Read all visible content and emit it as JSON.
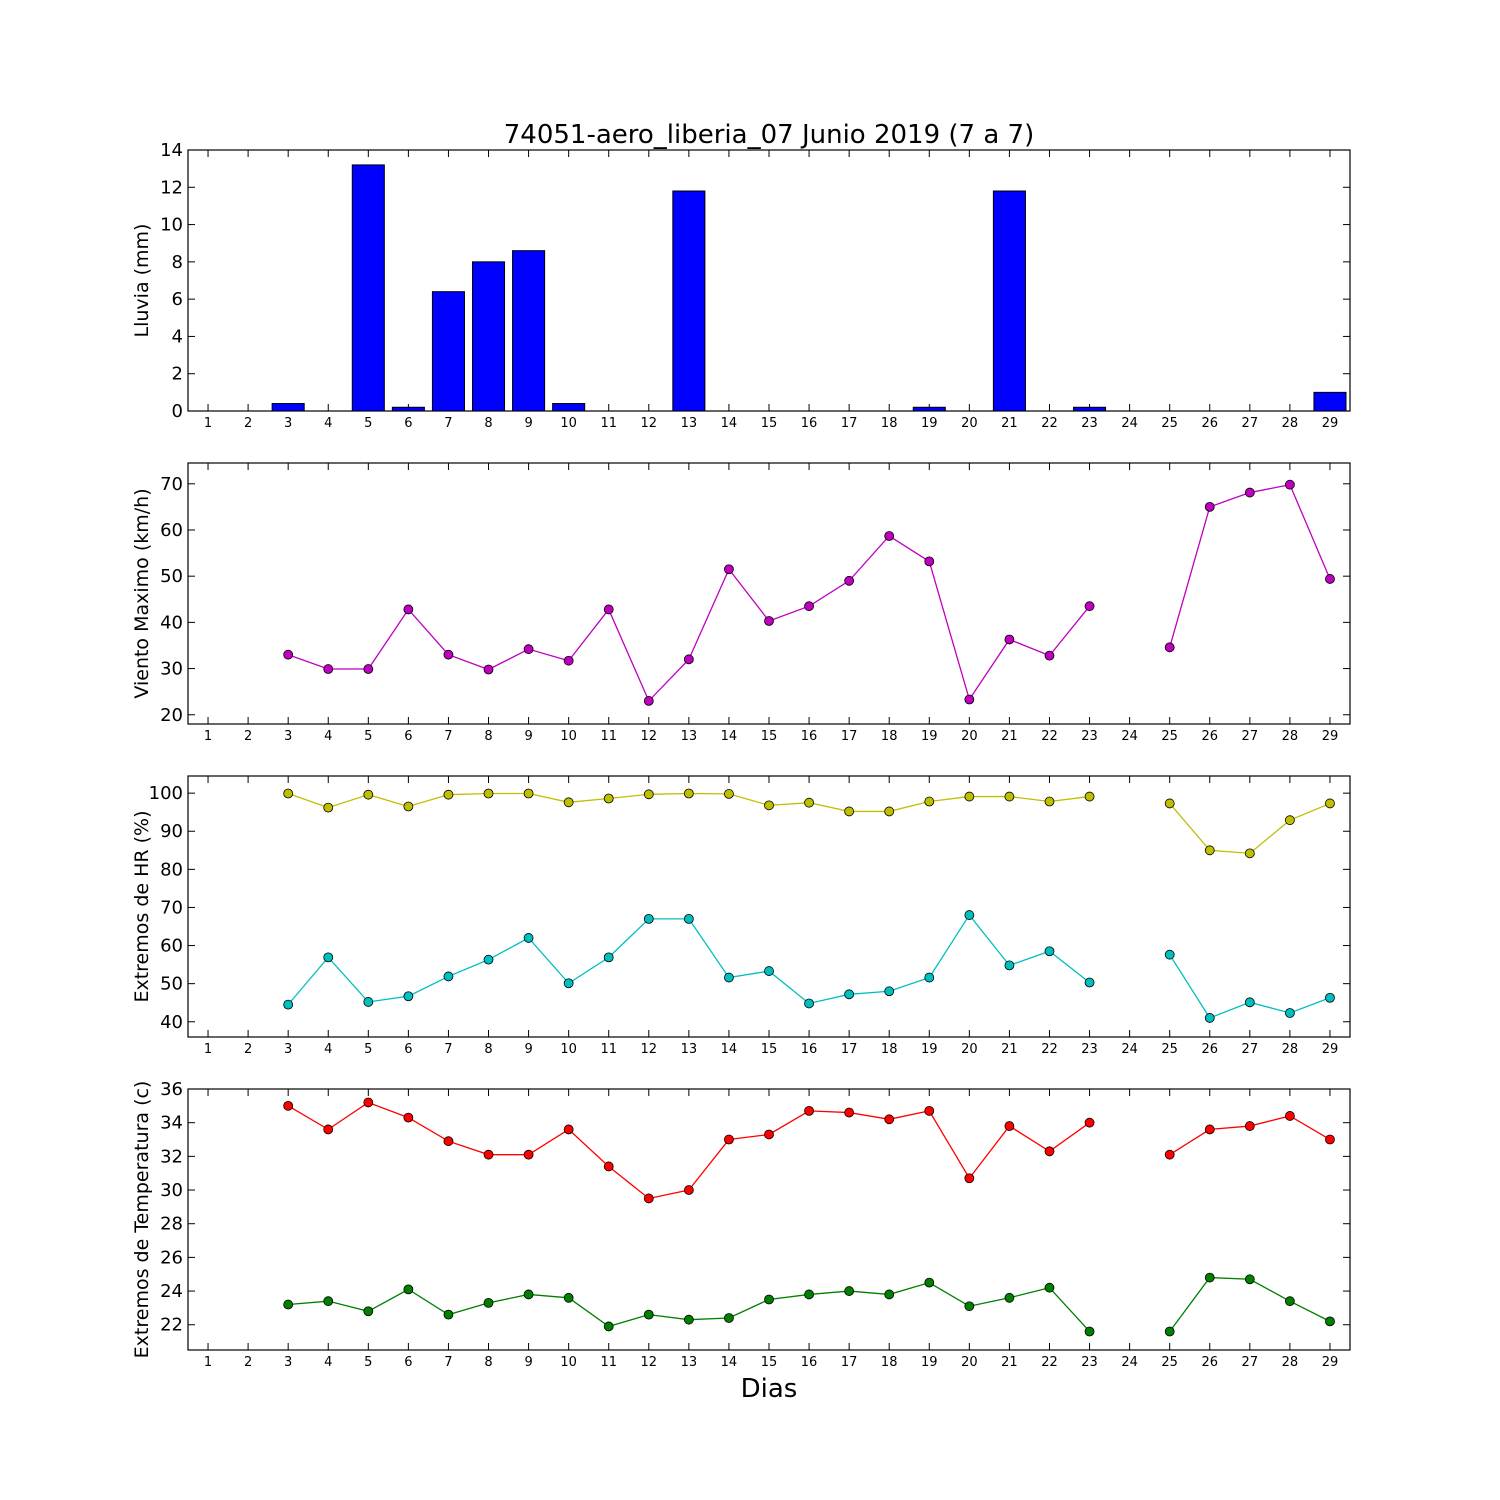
{
  "chart_data": {
    "title": "74051-aero_liberia_07 Junio 2019  (7 a 7)",
    "xlabel": "Dias",
    "days": [
      1,
      2,
      3,
      4,
      5,
      6,
      7,
      8,
      9,
      10,
      11,
      12,
      13,
      14,
      15,
      16,
      17,
      18,
      19,
      20,
      21,
      22,
      23,
      24,
      25,
      26,
      27,
      28,
      29
    ],
    "panels": [
      {
        "type": "bar",
        "ylabel": "Lluvia (mm)",
        "ylim": [
          0,
          14
        ],
        "yticks": [
          0,
          2,
          4,
          6,
          8,
          10,
          12,
          14
        ],
        "series": [
          {
            "color": "#0000ff",
            "values": [
              0,
              0,
              0.4,
              0,
              13.2,
              0.2,
              6.4,
              8.0,
              8.6,
              0.4,
              0,
              0,
              11.8,
              0,
              0,
              0,
              0,
              0,
              0.2,
              0,
              11.8,
              0,
              0.2,
              0,
              0,
              0,
              0,
              0,
              1.0
            ]
          }
        ]
      },
      {
        "type": "line",
        "ylabel": "Viento Maximo (km/h)",
        "ylim": [
          18,
          74.5
        ],
        "yticks": [
          20,
          30,
          40,
          50,
          60,
          70
        ],
        "series": [
          {
            "color": "#bf00bf",
            "values": [
              null,
              null,
              33.0,
              29.9,
              29.9,
              42.8,
              33.0,
              29.8,
              34.2,
              31.7,
              42.8,
              23.0,
              32.0,
              51.5,
              40.3,
              43.5,
              49.0,
              58.7,
              53.2,
              23.3,
              36.3,
              32.8,
              43.5,
              null,
              34.6,
              65.0,
              68.1,
              69.8,
              49.4
            ]
          }
        ]
      },
      {
        "type": "line",
        "ylabel": "Extremos de HR (%)",
        "ylim": [
          36,
          104.5
        ],
        "yticks": [
          40,
          50,
          60,
          70,
          80,
          90,
          100
        ],
        "series": [
          {
            "color": "#bfbf00",
            "values": [
              null,
              null,
              99.9,
              96.2,
              99.6,
              96.5,
              99.6,
              99.9,
              99.9,
              97.6,
              98.6,
              99.7,
              99.9,
              99.8,
              96.8,
              97.5,
              95.2,
              95.2,
              97.8,
              99.1,
              99.1,
              97.8,
              99.1,
              null,
              97.3,
              85.0,
              84.2,
              92.9,
              97.3
            ]
          },
          {
            "color": "#00bfbf",
            "values": [
              null,
              null,
              44.5,
              56.9,
              45.2,
              46.7,
              51.9,
              56.3,
              62.0,
              50.1,
              56.9,
              67.0,
              67.0,
              51.6,
              53.3,
              44.8,
              47.2,
              48.0,
              51.6,
              68.0,
              54.8,
              58.5,
              50.3,
              null,
              57.6,
              41.0,
              45.1,
              42.3,
              46.3
            ]
          }
        ]
      },
      {
        "type": "line",
        "ylabel": "Extremos de Temperatura (c)",
        "ylim": [
          20.5,
          36
        ],
        "yticks": [
          22,
          24,
          26,
          28,
          30,
          32,
          34,
          36
        ],
        "series": [
          {
            "color": "#ff0000",
            "values": [
              null,
              null,
              35.0,
              33.6,
              35.2,
              34.3,
              32.9,
              32.1,
              32.1,
              33.6,
              31.4,
              29.5,
              30.0,
              33.0,
              33.3,
              34.7,
              34.6,
              34.2,
              34.7,
              30.7,
              33.8,
              32.3,
              34.0,
              null,
              32.1,
              33.6,
              33.8,
              34.4,
              33.0
            ]
          },
          {
            "color": "#007f00",
            "values": [
              null,
              null,
              23.2,
              23.4,
              22.8,
              24.1,
              22.6,
              23.3,
              23.8,
              23.6,
              21.9,
              22.6,
              22.3,
              22.4,
              23.5,
              23.8,
              24.0,
              23.8,
              24.5,
              23.1,
              23.6,
              24.2,
              21.6,
              null,
              21.6,
              24.8,
              24.7,
              23.4,
              22.2
            ]
          }
        ]
      }
    ]
  }
}
